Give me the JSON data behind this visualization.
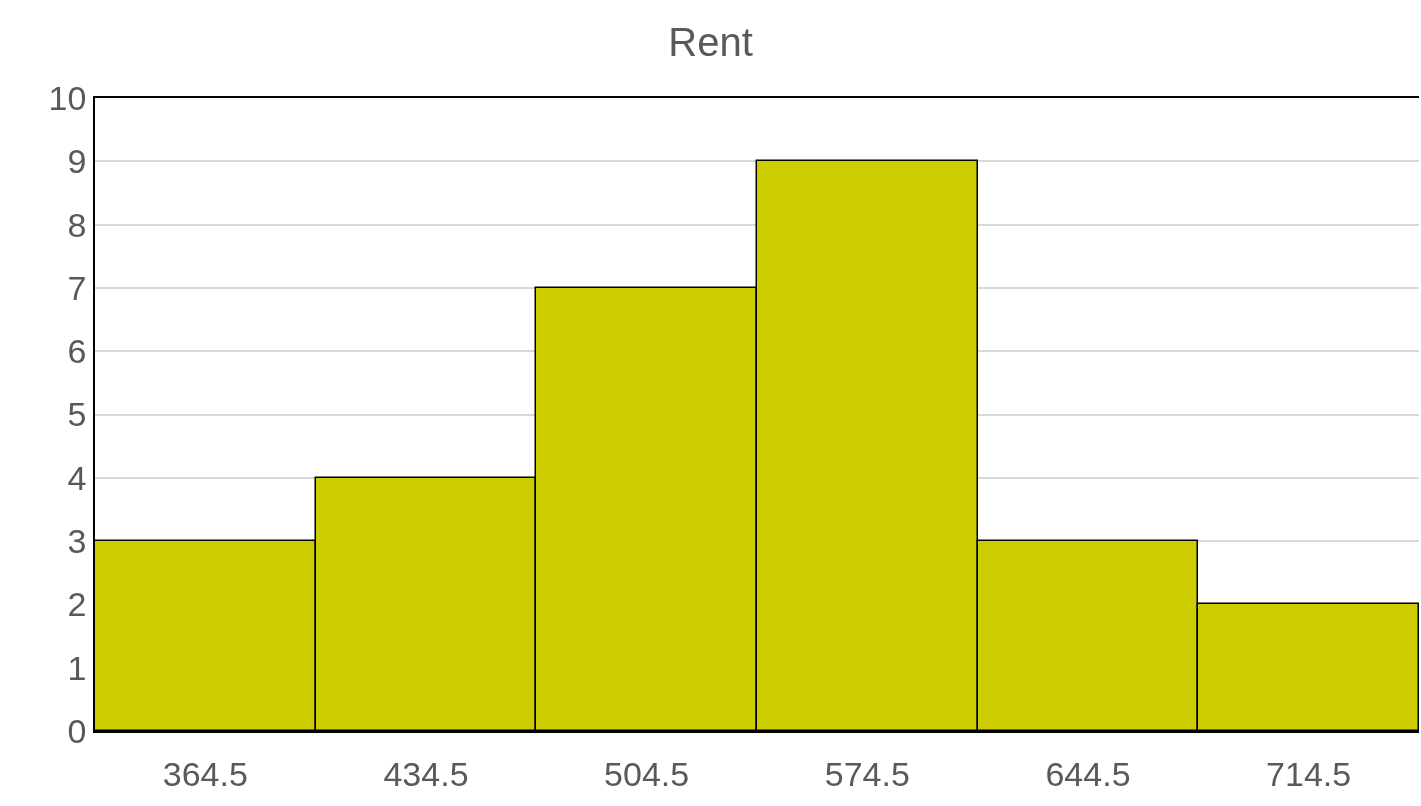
{
  "chart_data": {
    "type": "bar",
    "title": "Rent",
    "categories": [
      "364.5",
      "434.5",
      "504.5",
      "574.5",
      "644.5",
      "714.5"
    ],
    "values": [
      3,
      4,
      7,
      9,
      3,
      2
    ],
    "color": "#cccc00",
    "ylim": [
      0,
      10
    ],
    "yticks": [
      0,
      1,
      2,
      3,
      4,
      5,
      6,
      7,
      8,
      9,
      10
    ],
    "grid": "y"
  }
}
